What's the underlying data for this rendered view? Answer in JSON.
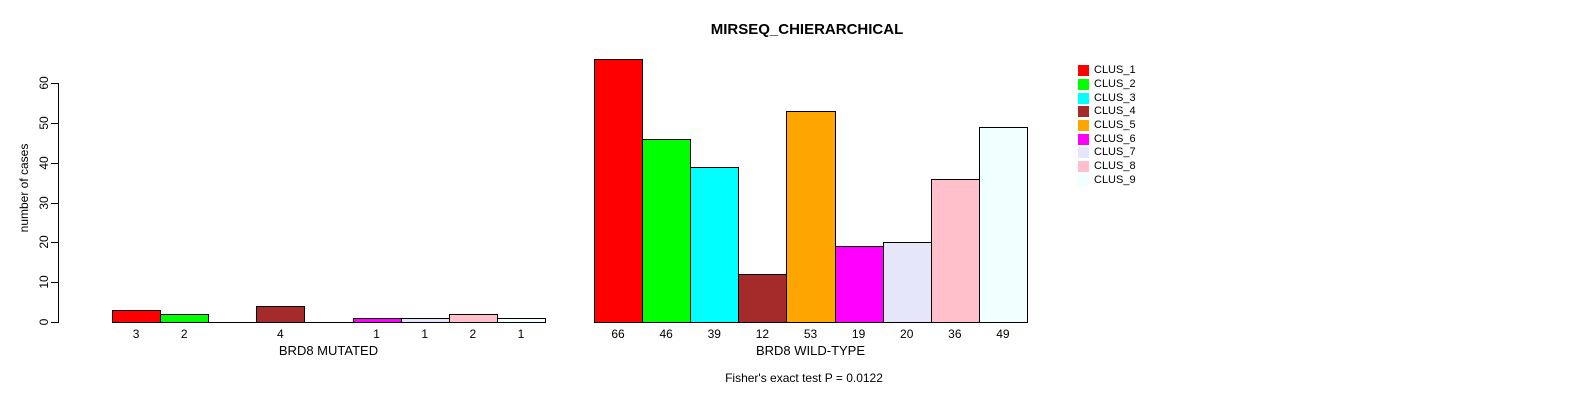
{
  "chart_data": {
    "type": "bar",
    "title": "MIRSEQ_CHIERARCHICAL",
    "ylabel": "number of cases",
    "yticks": [
      0,
      10,
      20,
      30,
      40,
      50,
      60
    ],
    "ylim": [
      0,
      66
    ],
    "grid": false,
    "legend_position": "top-right",
    "clusters": [
      {
        "name": "CLUS_1",
        "color": "#FF0000"
      },
      {
        "name": "CLUS_2",
        "color": "#00FF00"
      },
      {
        "name": "CLUS_3",
        "color": "#00FFFF"
      },
      {
        "name": "CLUS_4",
        "color": "#A52A2A"
      },
      {
        "name": "CLUS_5",
        "color": "#FFA500"
      },
      {
        "name": "CLUS_6",
        "color": "#FF00FF"
      },
      {
        "name": "CLUS_7",
        "color": "#E6E6FA"
      },
      {
        "name": "CLUS_8",
        "color": "#FFC0CB"
      },
      {
        "name": "CLUS_9",
        "color": "#F0FFFF"
      }
    ],
    "groups": [
      {
        "label": "BRD8 MUTATED",
        "values": [
          3,
          2,
          0,
          4,
          0,
          1,
          1,
          2,
          1
        ]
      },
      {
        "label": "BRD8 WILD-TYPE",
        "values": [
          66,
          46,
          39,
          12,
          53,
          19,
          20,
          36,
          49
        ]
      }
    ],
    "bar_label_note": "zero-value bars drawn as baseline only, no label",
    "footnote": "Fisher's exact test P = 0.0122"
  }
}
